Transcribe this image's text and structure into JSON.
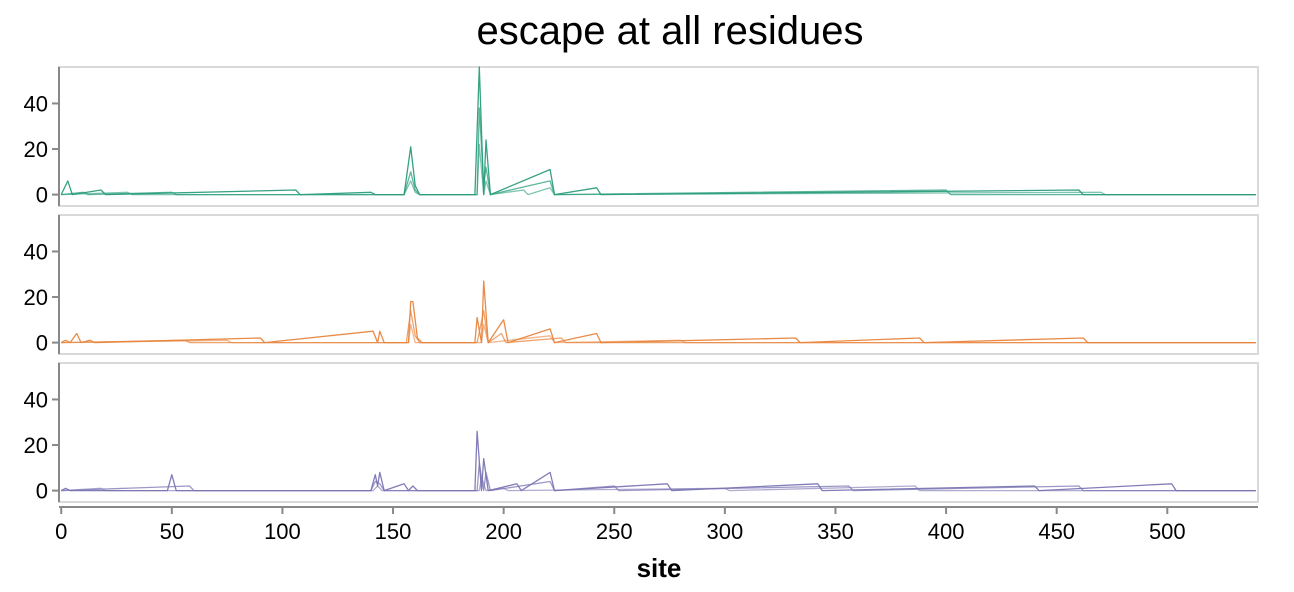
{
  "colors": {
    "series": [
      "#2a9d7c",
      "#e8853d",
      "#7b75b3"
    ]
  },
  "chart_data": {
    "type": "line",
    "title": "escape at all residues",
    "xlabel": "site",
    "ylabel": "",
    "xlim": [
      -1,
      541
    ],
    "ylim": [
      -5,
      56
    ],
    "xticks": [
      0,
      50,
      100,
      150,
      200,
      250,
      300,
      350,
      400,
      450,
      500
    ],
    "yticks": [
      0,
      20,
      40
    ],
    "grid": false,
    "panels": [
      {
        "series": [
          {
            "values": [
              [
                0,
                0
              ],
              [
                3,
                6
              ],
              [
                5,
                0
              ],
              [
                18,
                2
              ],
              [
                20,
                0
              ],
              [
                106,
                2
              ],
              [
                108,
                0
              ],
              [
                140,
                1
              ],
              [
                142,
                0
              ],
              [
                155,
                0
              ],
              [
                158,
                21
              ],
              [
                160,
                4
              ],
              [
                162,
                0
              ],
              [
                187,
                0
              ],
              [
                189,
                56
              ],
              [
                191,
                0
              ],
              [
                192,
                24
              ],
              [
                194,
                0
              ],
              [
                221,
                11
              ],
              [
                223,
                0
              ],
              [
                242,
                3
              ],
              [
                244,
                0
              ],
              [
                460,
                2
              ],
              [
                462,
                0
              ],
              [
                540,
                0
              ]
            ]
          },
          {
            "values": [
              [
                0,
                0
              ],
              [
                10,
                1
              ],
              [
                12,
                0
              ],
              [
                50,
                1
              ],
              [
                52,
                0
              ],
              [
                155,
                0
              ],
              [
                158,
                10
              ],
              [
                160,
                2
              ],
              [
                162,
                0
              ],
              [
                188,
                0
              ],
              [
                189,
                38
              ],
              [
                191,
                4
              ],
              [
                192,
                12
              ],
              [
                194,
                0
              ],
              [
                221,
                6
              ],
              [
                223,
                0
              ],
              [
                400,
                2
              ],
              [
                402,
                0
              ],
              [
                540,
                0
              ]
            ]
          },
          {
            "values": [
              [
                0,
                0
              ],
              [
                30,
                1
              ],
              [
                32,
                0
              ],
              [
                155,
                0
              ],
              [
                158,
                6
              ],
              [
                160,
                1
              ],
              [
                162,
                0
              ],
              [
                188,
                0
              ],
              [
                189,
                22
              ],
              [
                191,
                0
              ],
              [
                192,
                6
              ],
              [
                194,
                0
              ],
              [
                209,
                2
              ],
              [
                211,
                0
              ],
              [
                221,
                3
              ],
              [
                223,
                0
              ],
              [
                470,
                1
              ],
              [
                472,
                0
              ],
              [
                540,
                0
              ]
            ]
          }
        ]
      },
      {
        "series": [
          {
            "values": [
              [
                0,
                0
              ],
              [
                2,
                1
              ],
              [
                4,
                0
              ],
              [
                7,
                4
              ],
              [
                9,
                0
              ],
              [
                13,
                1
              ],
              [
                15,
                0
              ],
              [
                90,
                2
              ],
              [
                92,
                0
              ],
              [
                141,
                5
              ],
              [
                143,
                0
              ],
              [
                144,
                5
              ],
              [
                146,
                0
              ],
              [
                157,
                0
              ],
              [
                158,
                18
              ],
              [
                159,
                18
              ],
              [
                161,
                2
              ],
              [
                163,
                0
              ],
              [
                187,
                0
              ],
              [
                188,
                11
              ],
              [
                190,
                0
              ],
              [
                191,
                27
              ],
              [
                193,
                0
              ],
              [
                200,
                10
              ],
              [
                202,
                0
              ],
              [
                221,
                6
              ],
              [
                223,
                0
              ],
              [
                242,
                4
              ],
              [
                244,
                0
              ],
              [
                332,
                2
              ],
              [
                334,
                0
              ],
              [
                388,
                2
              ],
              [
                390,
                0
              ],
              [
                462,
                2
              ],
              [
                464,
                0
              ],
              [
                540,
                0
              ]
            ]
          },
          {
            "values": [
              [
                0,
                0
              ],
              [
                56,
                1
              ],
              [
                58,
                0
              ],
              [
                156,
                0
              ],
              [
                158,
                14
              ],
              [
                160,
                3
              ],
              [
                162,
                0
              ],
              [
                188,
                0
              ],
              [
                191,
                14
              ],
              [
                193,
                0
              ],
              [
                199,
                4
              ],
              [
                201,
                0
              ],
              [
                226,
                2
              ],
              [
                228,
                0
              ],
              [
                540,
                0
              ]
            ]
          },
          {
            "values": [
              [
                0,
                0
              ],
              [
                75,
                1
              ],
              [
                77,
                0
              ],
              [
                157,
                0
              ],
              [
                158,
                8
              ],
              [
                160,
                0
              ],
              [
                190,
                0
              ],
              [
                191,
                8
              ],
              [
                193,
                0
              ],
              [
                221,
                3
              ],
              [
                223,
                0
              ],
              [
                280,
                1
              ],
              [
                282,
                0
              ],
              [
                540,
                0
              ]
            ]
          }
        ]
      },
      {
        "series": [
          {
            "values": [
              [
                0,
                0
              ],
              [
                2,
                1
              ],
              [
                4,
                0
              ],
              [
                48,
                0
              ],
              [
                50,
                7
              ],
              [
                52,
                0
              ],
              [
                140,
                0
              ],
              [
                142,
                7
              ],
              [
                143,
                2
              ],
              [
                144,
                8
              ],
              [
                146,
                0
              ],
              [
                155,
                3
              ],
              [
                157,
                0
              ],
              [
                159,
                2
              ],
              [
                161,
                0
              ],
              [
                187,
                0
              ],
              [
                188,
                26
              ],
              [
                190,
                0
              ],
              [
                191,
                14
              ],
              [
                193,
                0
              ],
              [
                206,
                3
              ],
              [
                208,
                0
              ],
              [
                221,
                8
              ],
              [
                223,
                0
              ],
              [
                274,
                3
              ],
              [
                276,
                0
              ],
              [
                342,
                3
              ],
              [
                344,
                0
              ],
              [
                440,
                2
              ],
              [
                442,
                0
              ],
              [
                502,
                3
              ],
              [
                504,
                0
              ],
              [
                540,
                0
              ]
            ]
          },
          {
            "values": [
              [
                0,
                0
              ],
              [
                58,
                2
              ],
              [
                60,
                0
              ],
              [
                140,
                0
              ],
              [
                142,
                4
              ],
              [
                144,
                3
              ],
              [
                146,
                0
              ],
              [
                188,
                0
              ],
              [
                189,
                12
              ],
              [
                191,
                0
              ],
              [
                192,
                8
              ],
              [
                194,
                0
              ],
              [
                221,
                4
              ],
              [
                223,
                0
              ],
              [
                250,
                2
              ],
              [
                252,
                0
              ],
              [
                356,
                2
              ],
              [
                358,
                0
              ],
              [
                460,
                2
              ],
              [
                462,
                0
              ],
              [
                540,
                0
              ]
            ]
          },
          {
            "values": [
              [
                0,
                0
              ],
              [
                18,
                1
              ],
              [
                20,
                0
              ],
              [
                141,
                0
              ],
              [
                143,
                2
              ],
              [
                145,
                0
              ],
              [
                189,
                0
              ],
              [
                190,
                6
              ],
              [
                192,
                0
              ],
              [
                200,
                1
              ],
              [
                202,
                0
              ],
              [
                300,
                1
              ],
              [
                302,
                0
              ],
              [
                386,
                2
              ],
              [
                388,
                0
              ],
              [
                540,
                0
              ]
            ]
          }
        ]
      }
    ]
  }
}
